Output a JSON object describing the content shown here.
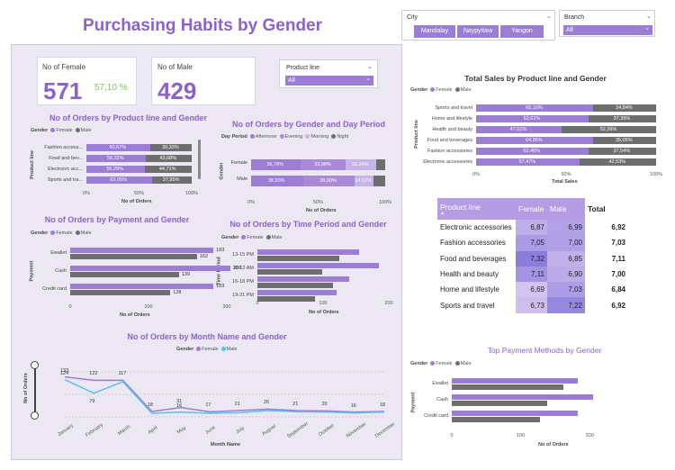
{
  "title": "Purchasing Habits by Gender",
  "colors": {
    "female": "#9b7dd4",
    "male": "#6e6e6e",
    "male_line": "#5bc0eb",
    "accent": "#8b62c9"
  },
  "city_slicer": {
    "label": "City",
    "options": [
      "Mandalay",
      "Naypyitaw",
      "Yangon"
    ]
  },
  "branch_slicer": {
    "label": "Branch",
    "value": "All"
  },
  "productline_slicer": {
    "label": "Product line",
    "value": "All"
  },
  "kpi_female": {
    "label": "No of Female",
    "value": "571",
    "pct": "57,10 %"
  },
  "kpi_male": {
    "label": "No of Male",
    "value": "429"
  },
  "legend": {
    "gender": "Gender",
    "female": "Female",
    "male": "Male",
    "day_period": "Day Period",
    "afternoon": "Afternoon",
    "evening": "Evening",
    "morning": "Morning",
    "night": "Night"
  },
  "chart_data": [
    {
      "id": "orders_by_product_line",
      "type": "bar",
      "title": "No of Orders by Product line and Gender",
      "ylabel": "Product line",
      "xlabel": "No of Orders",
      "categories": [
        "Fashion access...",
        "Food and bev...",
        "Electronic acc...",
        "Sports and tra..."
      ],
      "series": [
        {
          "name": "Female",
          "values": [
            60.67,
            56.32,
            55.29,
            62.05
          ],
          "labels": [
            "60,67%",
            "56,32%",
            "55,29%",
            "62,05%"
          ]
        },
        {
          "name": "Male",
          "values": [
            39.33,
            43.68,
            44.71,
            37.95
          ],
          "labels": [
            "39,33%",
            "43,68%",
            "44,71%",
            "37,95%"
          ]
        }
      ],
      "xticks": [
        "0%",
        "50%",
        "100%"
      ]
    },
    {
      "id": "orders_by_day_period",
      "type": "bar",
      "title": "No of Orders by Gender and Day Period",
      "ylabel": "Gender",
      "xlabel": "No of Orders",
      "categories": [
        "Female",
        "Male"
      ],
      "series": [
        {
          "name": "Afternoon",
          "values": [
            36.78,
            38.93
          ],
          "labels": [
            "36,78%",
            "38,93%"
          ]
        },
        {
          "name": "Evening",
          "values": [
            33.98,
            38.0
          ],
          "labels": [
            "33,98%",
            "38,00%"
          ]
        },
        {
          "name": "Morning",
          "values": [
            22.24,
            14.62
          ],
          "labels": [
            "22,24%",
            "14,62%"
          ]
        },
        {
          "name": "Night",
          "values": [
            7.0,
            8.45
          ],
          "labels": [
            "",
            ""
          ]
        }
      ],
      "xticks": [
        "0%",
        "50%",
        "100%"
      ]
    },
    {
      "id": "orders_by_payment",
      "type": "bar",
      "title": "No of Orders by Payment and Gender",
      "ylabel": "Payment",
      "xlabel": "No of Orders",
      "categories": [
        "Ewallet",
        "Cash",
        "Credit card"
      ],
      "series": [
        {
          "name": "Female",
          "values": [
            183,
            205,
            183
          ]
        },
        {
          "name": "Male",
          "values": [
            162,
            139,
            128
          ]
        }
      ],
      "xticks": [
        "0",
        "100",
        "200"
      ],
      "xlim": [
        0,
        230
      ]
    },
    {
      "id": "orders_by_time_period",
      "type": "bar",
      "title": "No of Orders by Time Period and Gender",
      "ylabel": "Time Period",
      "xlabel": "No of Orders",
      "categories": [
        "13-15 PM",
        "10-12 AM",
        "16-18 PM",
        "19-21 PM"
      ],
      "series": [
        {
          "name": "Female",
          "values": [
            155,
            185,
            140,
            120
          ]
        },
        {
          "name": "Male",
          "values": [
            125,
            98,
            115,
            88
          ]
        }
      ],
      "xticks": [
        "0",
        "100",
        "200"
      ],
      "xlim": [
        0,
        200
      ]
    },
    {
      "id": "orders_by_month",
      "type": "line",
      "title": "No of Orders by Month Name and Gender",
      "ylabel": "No of Orders",
      "xlabel": "Month Name",
      "categories": [
        "January",
        "February",
        "March",
        "April",
        "May",
        "June",
        "July",
        "August",
        "September",
        "October",
        "November",
        "December"
      ],
      "series": [
        {
          "name": "Female",
          "values": [
            133,
            122,
            122,
            18,
            31,
            17,
            21,
            26,
            21,
            20,
            16,
            18
          ]
        },
        {
          "name": "Male",
          "values": [
            124,
            79,
            117,
            12,
            16,
            12,
            14,
            21,
            17,
            16,
            13,
            16
          ]
        }
      ],
      "labels": [
        "133",
        "124",
        "122",
        "79",
        "117",
        "18",
        "31",
        "16",
        "17",
        "21",
        "26",
        "21",
        "20",
        "16",
        "18"
      ],
      "ylim": [
        0,
        150
      ]
    },
    {
      "id": "sales_by_product_line",
      "type": "bar",
      "title": "Total Sales by Product line and Gender",
      "ylabel": "Product line",
      "xlabel": "Total Sales",
      "categories": [
        "Sports and travel",
        "Home and lifestyle",
        "Health and beauty",
        "Food and beverages",
        "Fashion accessories",
        "Electronic accessories"
      ],
      "series": [
        {
          "name": "Female",
          "values": [
            65.16,
            62.61,
            47.61,
            64.95,
            62.46,
            57.47
          ],
          "labels": [
            "65,16%",
            "62,61%",
            "47,61%",
            "64,95%",
            "62,46%",
            "57,47%"
          ]
        },
        {
          "name": "Male",
          "values": [
            34.84,
            37.39,
            52.39,
            35.05,
            37.54,
            42.53
          ],
          "labels": [
            "34,84%",
            "37,39%",
            "52,39%",
            "35,05%",
            "37,54%",
            "42,53%"
          ]
        }
      ],
      "xticks": [
        "0%",
        "50%",
        "100%"
      ]
    },
    {
      "id": "matrix",
      "type": "table",
      "columns": [
        "Product line",
        "Female",
        "Male",
        "Total"
      ],
      "rows": [
        [
          "Electronic accessories",
          "6,87",
          "6,99",
          "6,92"
        ],
        [
          "Fashion accessories",
          "7,05",
          "7,00",
          "7,03"
        ],
        [
          "Food and beverages",
          "7,32",
          "6,85",
          "7,11"
        ],
        [
          "Health and beauty",
          "7,11",
          "6,90",
          "7,00"
        ],
        [
          "Home and lifestyle",
          "6,69",
          "7,03",
          "6,84"
        ],
        [
          "Sports and travel",
          "6,73",
          "7,22",
          "6,92"
        ]
      ]
    },
    {
      "id": "top_payment",
      "type": "bar",
      "title": "Top Payment Methods by Gender",
      "ylabel": "Payment",
      "xlabel": "No of Orders",
      "categories": [
        "Ewallet",
        "Cash",
        "Credit card"
      ],
      "series": [
        {
          "name": "Female",
          "values": [
            183,
            205,
            183
          ]
        },
        {
          "name": "Male",
          "values": [
            162,
            139,
            128
          ]
        }
      ],
      "xticks": [
        "0",
        "100",
        "200"
      ],
      "xlim": [
        0,
        235
      ]
    }
  ]
}
